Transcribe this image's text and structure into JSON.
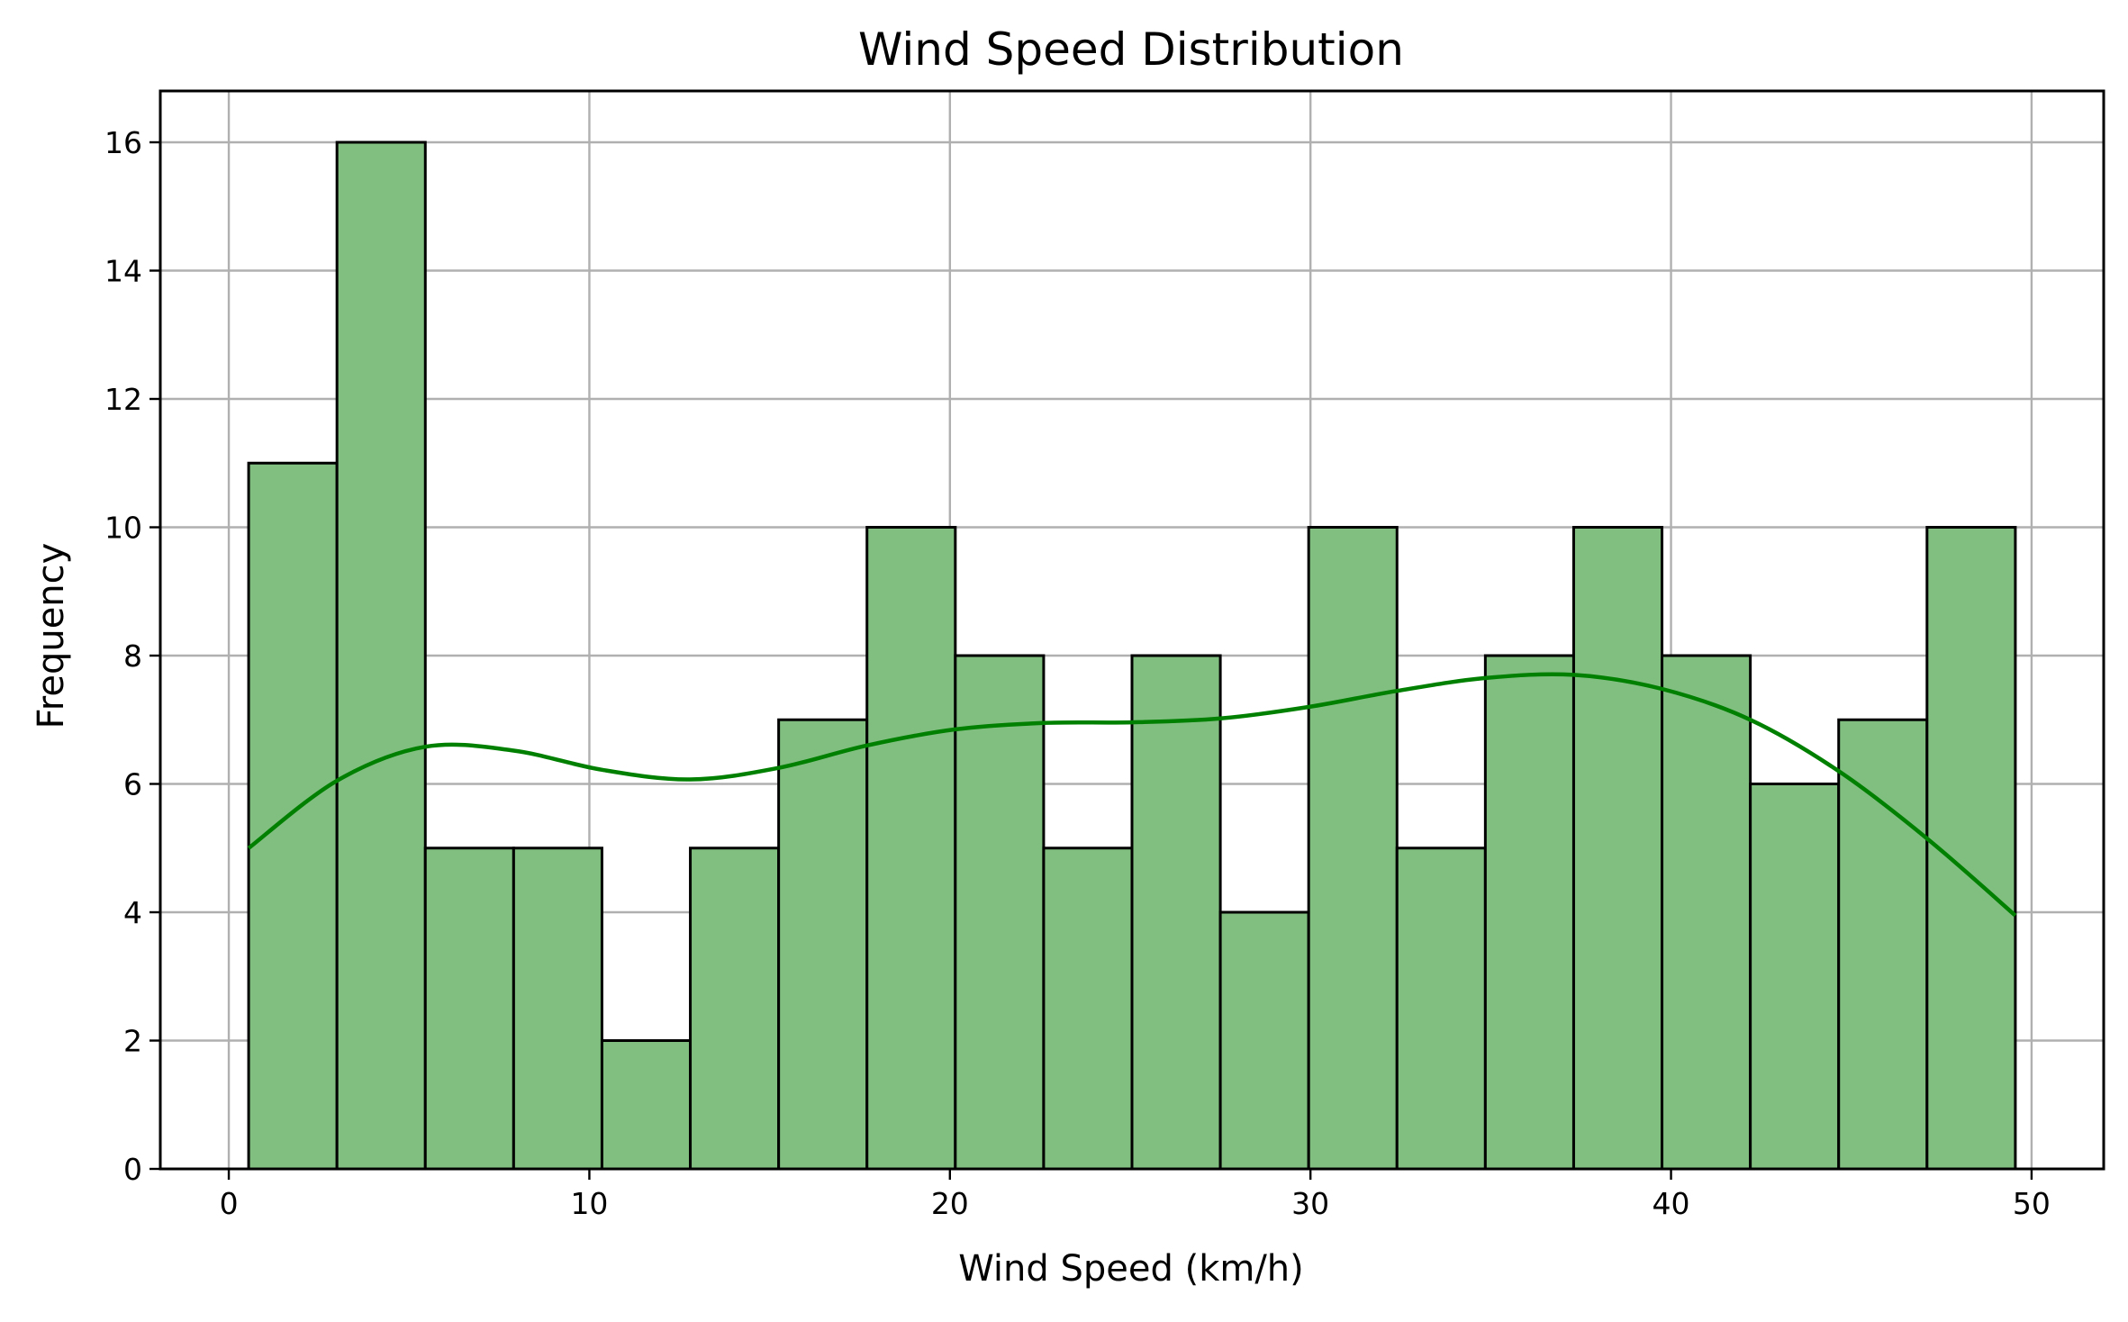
{
  "chart_data": {
    "type": "bar",
    "title": "Wind Speed Distribution",
    "xlabel": "Wind Speed (km/h)",
    "ylabel": "Frequency",
    "xlim": [
      -1.9,
      52
    ],
    "ylim": [
      0,
      16.8
    ],
    "xticks": [
      0,
      10,
      20,
      30,
      40,
      50
    ],
    "yticks": [
      0,
      2,
      4,
      6,
      8,
      10,
      12,
      14,
      16
    ],
    "grid": true,
    "legend": "none",
    "bin_edges": [
      0.55,
      3.0,
      5.45,
      7.9,
      10.35,
      12.8,
      15.25,
      17.7,
      20.15,
      22.6,
      25.05,
      27.5,
      29.95,
      32.4,
      34.85,
      37.3,
      39.75,
      42.2,
      44.65,
      47.1,
      49.55
    ],
    "values": [
      11,
      16,
      5,
      5,
      2,
      5,
      7,
      10,
      8,
      5,
      8,
      4,
      10,
      5,
      8,
      10,
      8,
      6,
      7,
      10
    ],
    "kde": {
      "x": [
        0.55,
        3.0,
        5.45,
        7.9,
        10.35,
        12.8,
        15.25,
        17.7,
        20.15,
        22.6,
        25.05,
        27.5,
        29.95,
        32.4,
        34.85,
        37.3,
        39.75,
        42.2,
        44.65,
        47.1,
        49.55
      ],
      "y": [
        5.0,
        6.05,
        6.58,
        6.52,
        6.22,
        6.07,
        6.25,
        6.6,
        6.85,
        6.95,
        6.96,
        7.02,
        7.2,
        7.45,
        7.65,
        7.7,
        7.48,
        7.0,
        6.2,
        5.15,
        3.95
      ]
    },
    "colors": {
      "bar_fill": "#80bf80",
      "bar_edge": "#000000",
      "kde_line": "#008000",
      "grid": "#b0b0b0"
    }
  }
}
